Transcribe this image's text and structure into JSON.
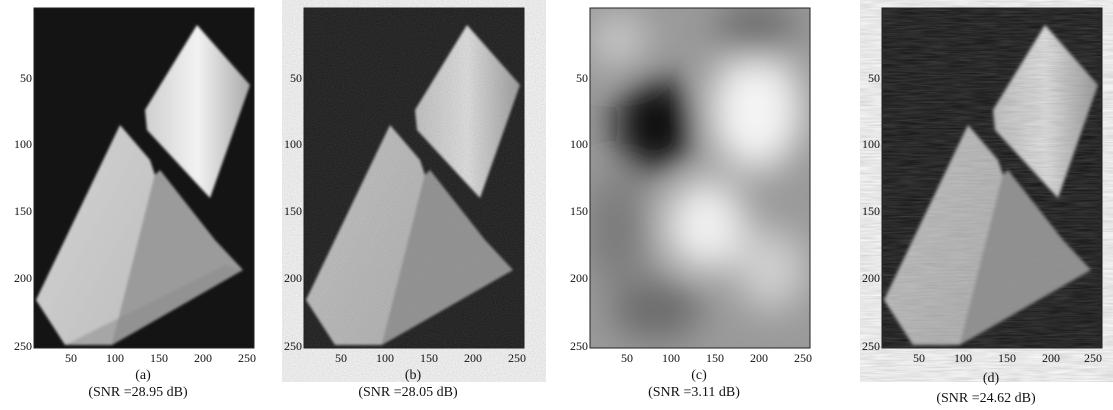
{
  "panels": [
    {
      "label": "(a)",
      "snr": "(SNR =28.95 dB)",
      "yticks": [
        "50",
        "100",
        "150",
        "200",
        "250"
      ],
      "xticks": [
        "50",
        "100",
        "150",
        "200",
        "250"
      ],
      "image": "reconstructed-prism-image"
    },
    {
      "label": "(b)",
      "snr": "(SNR =28.05 dB)",
      "yticks": [
        "50",
        "100",
        "150",
        "200",
        "250"
      ],
      "xticks": [
        "50",
        "100",
        "150",
        "200",
        "250"
      ],
      "image": "reconstructed-prism-image-noisy"
    },
    {
      "label": "(c)",
      "snr": "(SNR =3.11 dB)",
      "yticks": [
        "50",
        "100",
        "150",
        "200",
        "250"
      ],
      "xticks": [
        "50",
        "100",
        "150",
        "200",
        "250"
      ],
      "image": "blurred-blob-image"
    },
    {
      "label": "(d)",
      "snr": "(SNR =24.62 dB)",
      "yticks": [
        "50",
        "100",
        "150",
        "200",
        "250"
      ],
      "xticks": [
        "50",
        "100",
        "150",
        "200",
        "250"
      ],
      "image": "reconstructed-prism-image-streaked"
    }
  ]
}
